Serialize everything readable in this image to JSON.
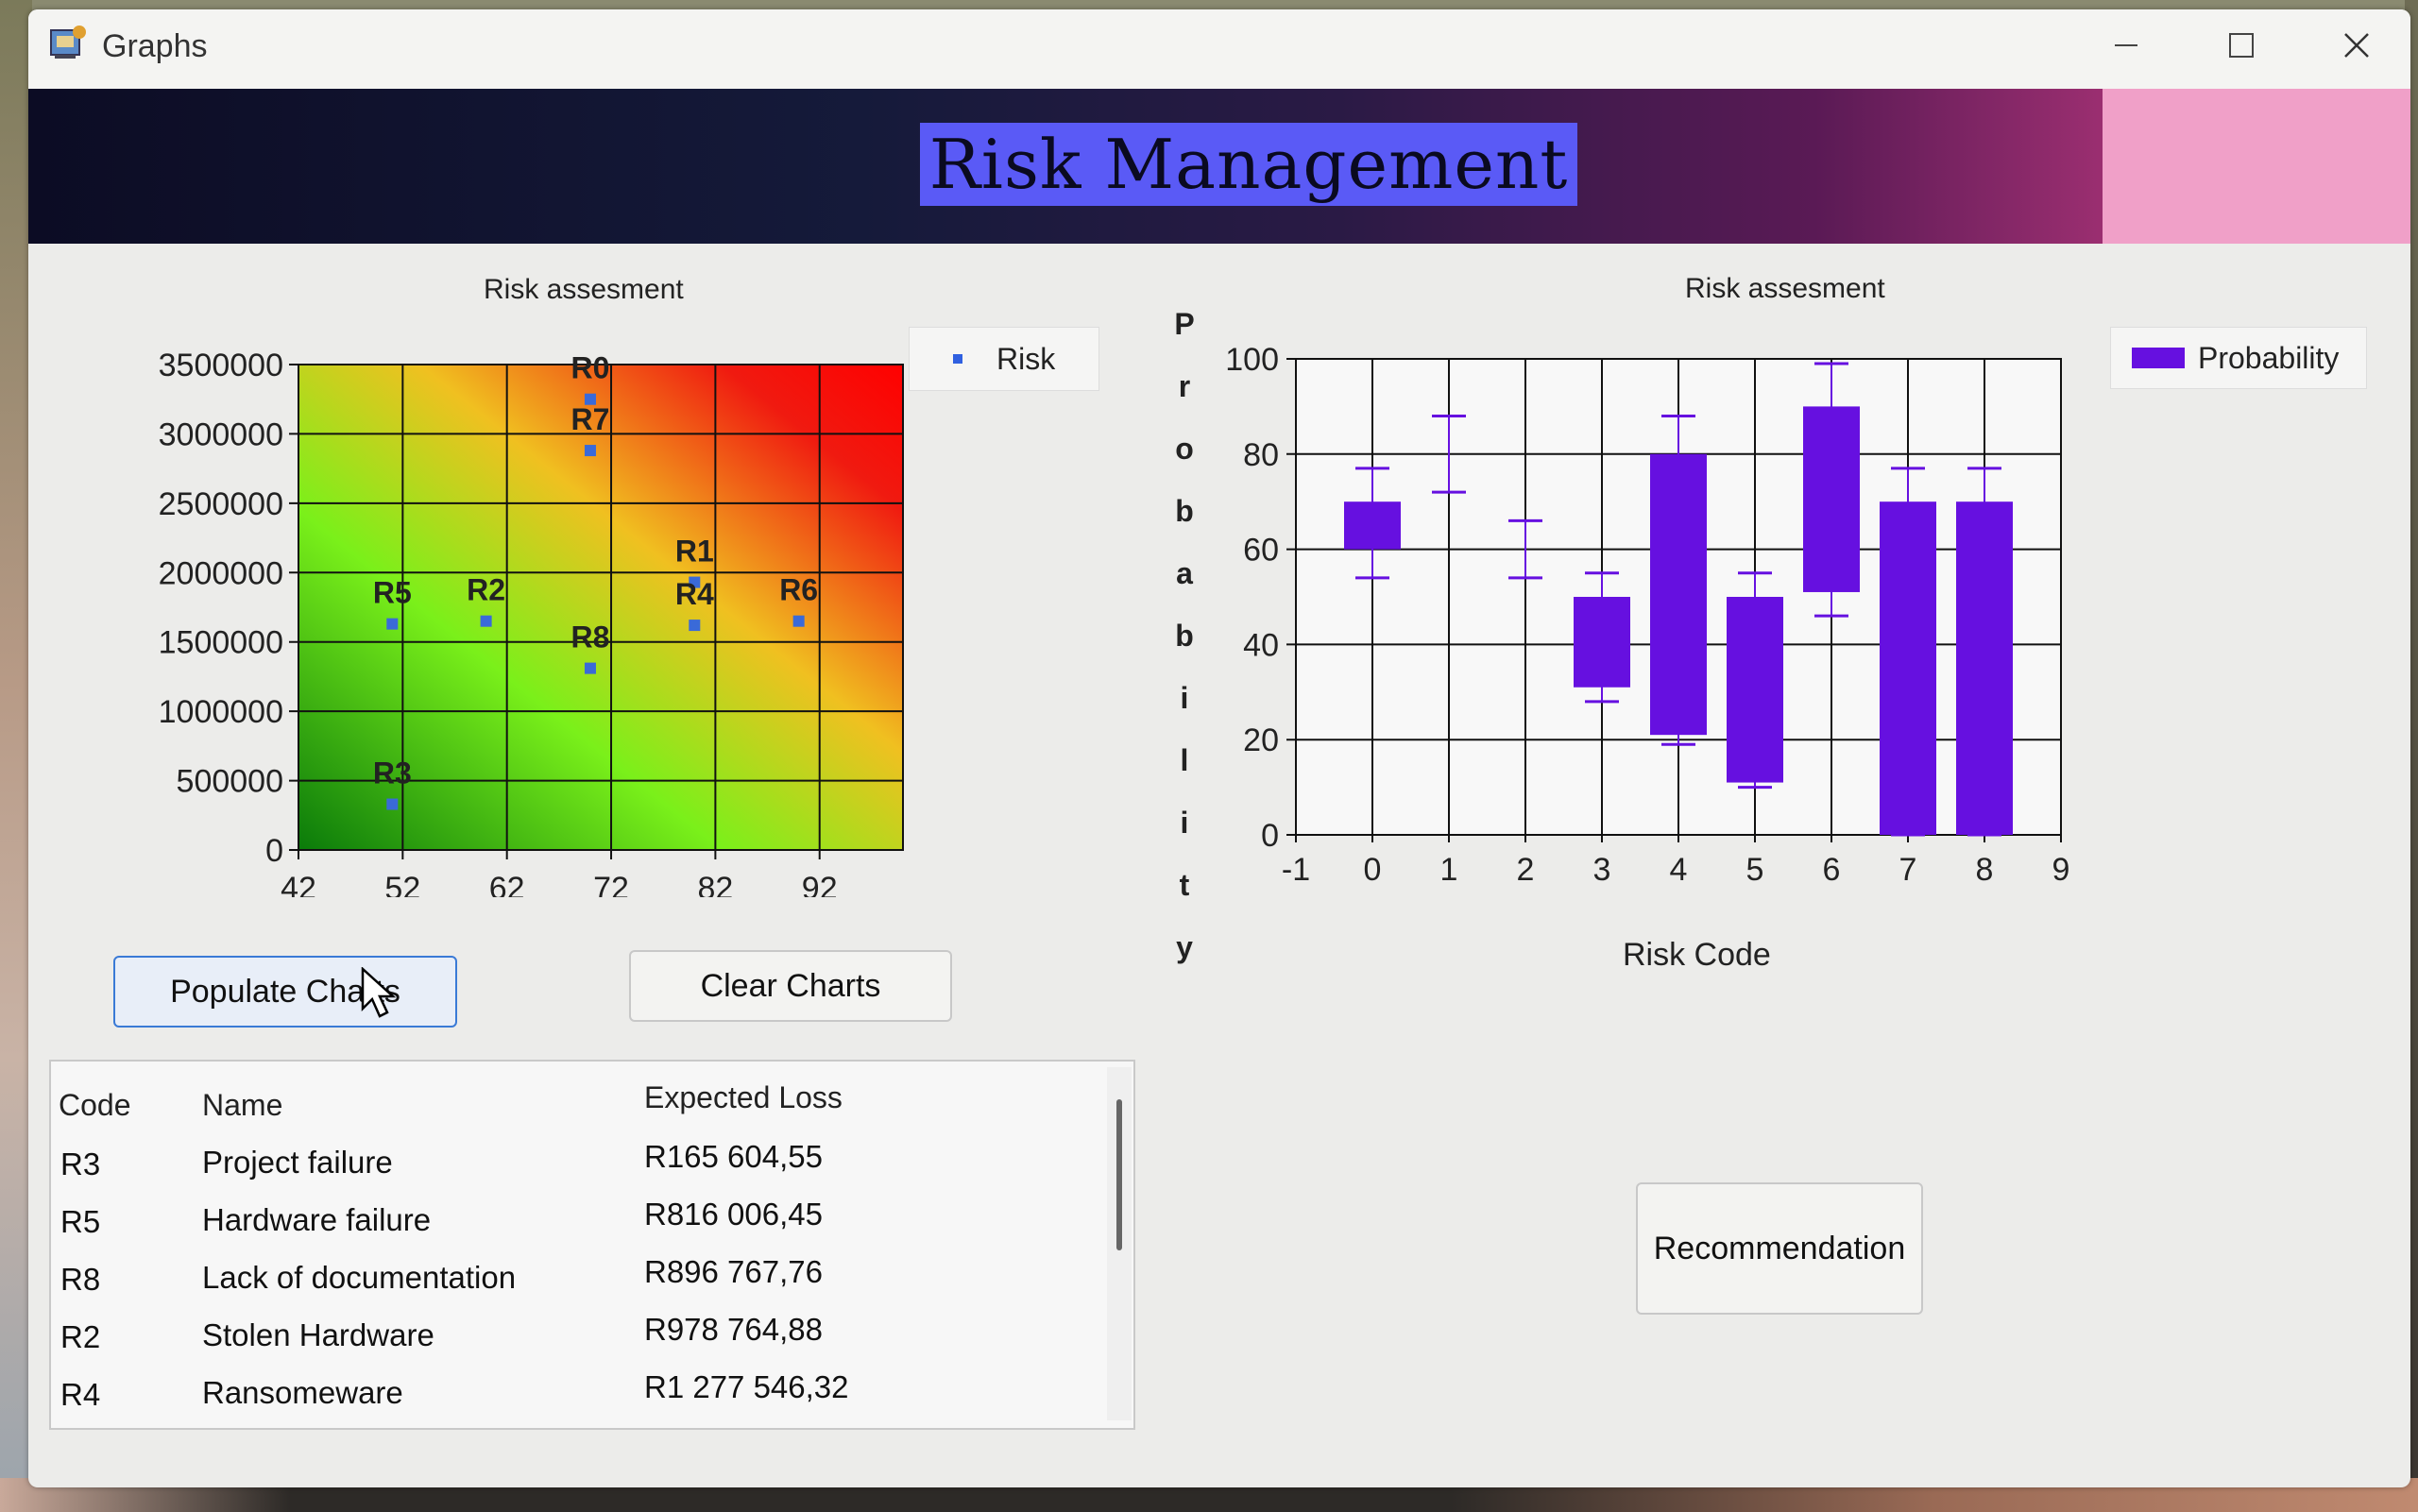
{
  "window": {
    "title": "Graphs"
  },
  "banner": {
    "title": "Risk Management"
  },
  "buttons": {
    "populate": "Populate Charts",
    "clear": "Clear Charts",
    "recommendation": "Recommendation"
  },
  "table": {
    "headers": [
      "Code",
      "Name",
      "Expected Loss"
    ],
    "rows": [
      {
        "code": "R3",
        "name": "Project failure",
        "loss": "R165 604,55"
      },
      {
        "code": "R5",
        "name": "Hardware failure",
        "loss": "R816 006,45"
      },
      {
        "code": "R8",
        "name": "Lack of documentation",
        "loss": "R896 767,76"
      },
      {
        "code": "R2",
        "name": "Stolen Hardware",
        "loss": "R978 764,88"
      },
      {
        "code": "R4",
        "name": "Ransomeware",
        "loss": "R1 277 546,32"
      }
    ]
  },
  "chart_data": [
    {
      "type": "scatter",
      "title": "Risk assesment",
      "legend": [
        "Risk"
      ],
      "legend_position": "top-right",
      "xlim": [
        42,
        100
      ],
      "ylim": [
        0,
        3500000
      ],
      "x_ticks": [
        "42",
        "52",
        "62",
        "72",
        "82",
        "92"
      ],
      "y_ticks": [
        "0",
        "500000",
        "1000000",
        "1500000",
        "2000000",
        "2500000",
        "3000000",
        "3500000"
      ],
      "grid": true,
      "background": "green-to-red gradient",
      "points": [
        {
          "label": "R0",
          "x": 70,
          "y": 3250000
        },
        {
          "label": "R7",
          "x": 70,
          "y": 2880000
        },
        {
          "label": "R1",
          "x": 80,
          "y": 1930000
        },
        {
          "label": "R5",
          "x": 51,
          "y": 1630000
        },
        {
          "label": "R2",
          "x": 60,
          "y": 1650000
        },
        {
          "label": "R6",
          "x": 90,
          "y": 1650000
        },
        {
          "label": "R8",
          "x": 70,
          "y": 1310000
        },
        {
          "label": "R4",
          "x": 80,
          "y": 1620000
        },
        {
          "label": "R3",
          "x": 51,
          "y": 330000
        }
      ]
    },
    {
      "type": "bar",
      "subtype": "range-bar with error bars",
      "title": "Risk assesment",
      "xlabel": "Risk Code",
      "ylabel": "Probability",
      "legend": [
        "Probability"
      ],
      "legend_position": "top-right",
      "xlim": [
        -1,
        9
      ],
      "ylim": [
        0,
        100
      ],
      "x_ticks": [
        "-1",
        "0",
        "1",
        "2",
        "3",
        "4",
        "5",
        "6",
        "7",
        "8",
        "9"
      ],
      "y_ticks": [
        "0",
        "20",
        "40",
        "60",
        "80",
        "100"
      ],
      "color": "#6610e0",
      "series": [
        {
          "name": "Probability",
          "values": [
            {
              "x": 0,
              "low": 60,
              "high": 70,
              "err_low": 54,
              "err_high": 77
            },
            {
              "x": 1,
              "low": 80,
              "high": 80,
              "err_low": 72,
              "err_high": 88
            },
            {
              "x": 2,
              "low": 60,
              "high": 60,
              "err_low": 54,
              "err_high": 66
            },
            {
              "x": 3,
              "low": 31,
              "high": 50,
              "err_low": 28,
              "err_high": 55
            },
            {
              "x": 4,
              "low": 21,
              "high": 80,
              "err_low": 19,
              "err_high": 88
            },
            {
              "x": 5,
              "low": 11,
              "high": 50,
              "err_low": 10,
              "err_high": 55
            },
            {
              "x": 6,
              "low": 51,
              "high": 90,
              "err_low": 46,
              "err_high": 99
            },
            {
              "x": 7,
              "low": 0,
              "high": 70,
              "err_low": 0,
              "err_high": 77
            },
            {
              "x": 8,
              "low": 0,
              "high": 70,
              "err_low": 0,
              "err_high": 77
            }
          ]
        }
      ]
    }
  ]
}
